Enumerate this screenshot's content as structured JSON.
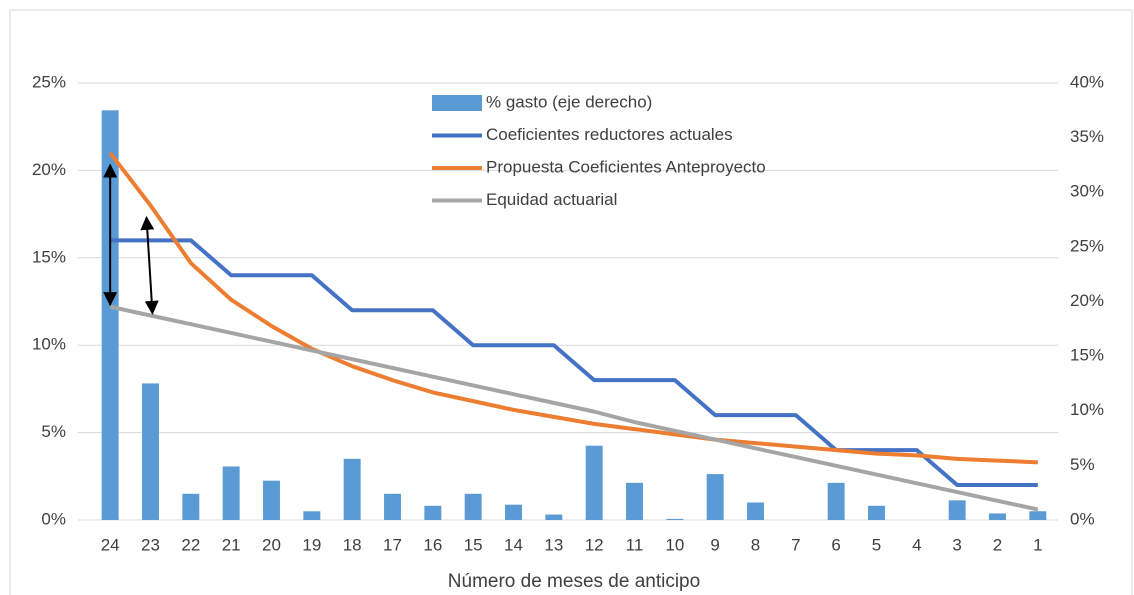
{
  "chart_data": {
    "type": "combo",
    "x_label": "Número de meses de anticipo",
    "categories": [
      "24",
      "23",
      "22",
      "21",
      "20",
      "19",
      "18",
      "17",
      "16",
      "15",
      "14",
      "13",
      "12",
      "11",
      "10",
      "9",
      "8",
      "7",
      "6",
      "5",
      "4",
      "3",
      "2",
      "1"
    ],
    "ylim": [
      0,
      25
    ],
    "yticks": [
      {
        "value": 0,
        "label": "0%"
      },
      {
        "value": 5,
        "label": "5%"
      },
      {
        "value": 10,
        "label": "10%"
      },
      {
        "value": 15,
        "label": "15%"
      },
      {
        "value": 20,
        "label": "20%"
      },
      {
        "value": 25,
        "label": "25%"
      }
    ],
    "y2lim": [
      0,
      40
    ],
    "y2ticks": [
      {
        "value": 0,
        "label": "0%"
      },
      {
        "value": 5,
        "label": "5%"
      },
      {
        "value": 10,
        "label": "10%"
      },
      {
        "value": 15,
        "label": "15%"
      },
      {
        "value": 20,
        "label": "20%"
      },
      {
        "value": 25,
        "label": "25%"
      },
      {
        "value": 30,
        "label": "30%"
      },
      {
        "value": 35,
        "label": "35%"
      },
      {
        "value": 40,
        "label": "40%"
      }
    ],
    "grid": true,
    "series": [
      {
        "name": "% gasto (eje derecho)",
        "type": "bar",
        "axis": "y2",
        "color": "#5b9bd5",
        "values": [
          37.5,
          12.5,
          2.4,
          4.9,
          3.6,
          0.8,
          5.6,
          2.4,
          1.3,
          2.4,
          1.4,
          0.5,
          6.8,
          3.4,
          0.1,
          4.2,
          1.6,
          0,
          3.4,
          1.3,
          0,
          1.8,
          0.6,
          0.8
        ]
      },
      {
        "name": "Coeficientes reductores actuales",
        "type": "line",
        "color": "#4472c4",
        "values": [
          16,
          16,
          16,
          14,
          14,
          14,
          12,
          12,
          12,
          10,
          10,
          10,
          8,
          8,
          8,
          6,
          6,
          6,
          4,
          4,
          4,
          2,
          2,
          2
        ]
      },
      {
        "name": "Propuesta Coeficientes Anteproyecto",
        "type": "line",
        "color": "#ed7d31",
        "values": [
          21,
          18,
          14.7,
          12.6,
          11.1,
          9.8,
          8.8,
          8,
          7.3,
          6.8,
          6.3,
          5.9,
          5.5,
          5.2,
          4.9,
          4.6,
          4.4,
          4.2,
          4.0,
          3.8,
          3.7,
          3.5,
          3.4,
          3.3
        ]
      },
      {
        "name": "Equidad actuarial",
        "type": "line",
        "color": "#a5a5a5",
        "values": [
          12.2,
          11.7,
          11.2,
          10.7,
          10.2,
          9.7,
          9.2,
          8.7,
          8.2,
          7.7,
          7.2,
          6.7,
          6.2,
          5.6,
          5.1,
          4.6,
          4.1,
          3.6,
          3.1,
          2.6,
          2.1,
          1.6,
          1.1,
          0.6
        ]
      }
    ]
  }
}
